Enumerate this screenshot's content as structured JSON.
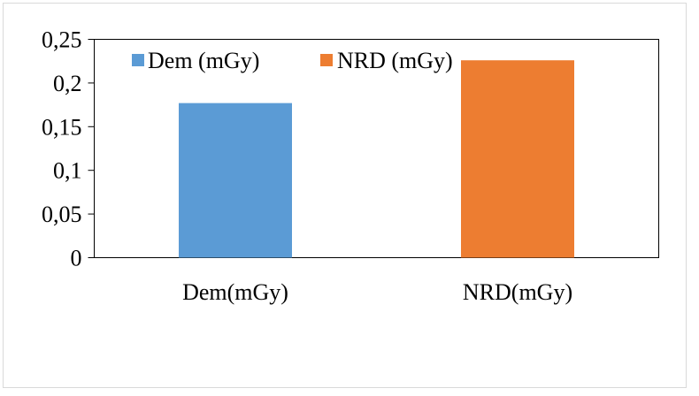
{
  "chart_data": {
    "type": "bar",
    "categories": [
      "Dem(mGy)",
      "NRD(mGy)"
    ],
    "series": [
      {
        "name": "Dem (mGy)",
        "values": [
          0.177,
          0
        ],
        "color": "#5b9bd5"
      },
      {
        "name": "NRD (mGy)",
        "values": [
          0,
          0.226
        ],
        "color": "#ed7d31"
      }
    ],
    "yticks": [
      "0",
      "0,05",
      "0,1",
      "0,15",
      "0,2",
      "0,25"
    ],
    "ytick_values": [
      0,
      0.05,
      0.1,
      0.15,
      0.2,
      0.25
    ],
    "ylim": [
      0,
      0.25
    ],
    "grid": false,
    "legend_placement": "top-left"
  }
}
